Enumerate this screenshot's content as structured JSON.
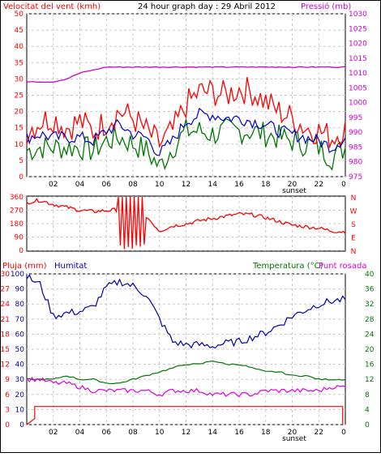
{
  "colors": {
    "wind": "#ff0000",
    "gust": "#ff0000",
    "wind_avg": "#0000cc",
    "wind_green": "#007700",
    "pressure": "#cc00cc",
    "direction": "#ff0000",
    "rain": "#ff0000",
    "humidity": "#0000aa",
    "temperature": "#007700",
    "dewpoint": "#dd00dd",
    "grid": "#c8c8c8",
    "frame": "#000000"
  },
  "chart_data": [
    {
      "type": "line",
      "title": "24 hour graph day : 29 Abril 2012",
      "ylabel_left": "Velocitat del vent (kmh)",
      "ylabel_right": "Pressió (mb)",
      "yticks_left": [
        "0",
        "5",
        "10",
        "15",
        "20",
        "25",
        "30",
        "35",
        "40",
        "45",
        "50"
      ],
      "yticks_right": [
        "975",
        "980",
        "985",
        "990",
        "995",
        "1000",
        "1005",
        "1010",
        "1015",
        "1020",
        "1025",
        "1030"
      ],
      "ylim_left": [
        0,
        50
      ],
      "ylim_right": [
        975,
        1030
      ],
      "xticks": [
        "02",
        "04",
        "06",
        "08",
        "10",
        "12",
        "14",
        "16",
        "18",
        "20",
        "22",
        "0"
      ],
      "xlabel_marker": "sunset",
      "x_hours": [
        0,
        1,
        2,
        3,
        4,
        5,
        6,
        7,
        8,
        9,
        10,
        11,
        12,
        13,
        14,
        15,
        16,
        17,
        18,
        19,
        20,
        21,
        22,
        23,
        24
      ],
      "series": [
        {
          "name": "Velocitat del vent (kmh)",
          "role": "gust",
          "values": [
            14,
            17,
            18,
            15,
            17,
            14,
            17,
            20,
            18,
            14,
            10,
            14,
            22,
            26,
            26,
            25,
            27,
            26,
            23,
            20,
            18,
            15,
            14,
            12,
            15
          ]
        },
        {
          "name": "",
          "role": "average",
          "values": [
            12,
            13,
            12,
            12,
            12,
            11,
            14,
            16,
            13,
            12,
            7,
            11,
            17,
            19,
            19,
            18,
            18,
            17,
            16,
            14,
            13,
            12,
            11,
            9,
            12
          ]
        },
        {
          "name": "",
          "role": "low",
          "values": [
            8,
            9,
            9,
            9,
            9,
            8,
            11,
            12,
            10,
            8,
            3,
            9,
            14,
            14,
            13,
            14,
            14,
            14,
            13,
            12,
            11,
            10,
            9,
            6,
            9
          ]
        },
        {
          "name": "Pressió (mb)",
          "role": "pressure",
          "values": [
            1007,
            1007,
            1007,
            1008,
            1010,
            1011,
            1012,
            1012,
            1012,
            1012,
            1012,
            1012,
            1012,
            1012,
            1012,
            1012,
            1012,
            1012,
            1012,
            1012,
            1012,
            1012,
            1012,
            1012,
            1012
          ]
        }
      ]
    },
    {
      "type": "line",
      "ylabel": "",
      "ylabel_right": [
        "N",
        "W",
        "S",
        "E",
        "N"
      ],
      "yticks_left": [
        "0",
        "90",
        "180",
        "270",
        "360"
      ],
      "ylim": [
        0,
        360
      ],
      "xticks": [
        "02",
        "04",
        "06",
        "08",
        "10",
        "12",
        "14",
        "16",
        "18",
        "20",
        "22",
        "0"
      ],
      "series": [
        {
          "name": "",
          "values": [
            322,
            338,
            310,
            290,
            270,
            262,
            268,
            275,
            280,
            230,
            130,
            165,
            178,
            200,
            215,
            230,
            245,
            240,
            220,
            195,
            170,
            160,
            150,
            130,
            125
          ]
        }
      ]
    },
    {
      "type": "line",
      "ylabel_left": [
        "Pluja (mm)",
        "Humitat"
      ],
      "ylabel_right": [
        "Temperatura (°C)",
        "Punt rosada"
      ],
      "yticks_rain": [
        "0",
        "3",
        "6",
        "9",
        "12",
        "15",
        "18",
        "21",
        "24",
        "27",
        "30"
      ],
      "yticks_humidity": [
        "0",
        "10",
        "20",
        "30",
        "40",
        "50",
        "60",
        "70",
        "80",
        "90",
        "100"
      ],
      "yticks_right": [
        "0",
        "4",
        "8",
        "12",
        "16",
        "20",
        "24",
        "28",
        "32",
        "36",
        "40"
      ],
      "xticks": [
        "02",
        "04",
        "06",
        "08",
        "10",
        "12",
        "14",
        "16",
        "18",
        "20",
        "22",
        "0"
      ],
      "xlabel_marker": "sunset",
      "series": [
        {
          "name": "Humitat",
          "axis": "humidity",
          "values": [
            98,
            93,
            72,
            74,
            75,
            78,
            91,
            95,
            92,
            86,
            70,
            55,
            53,
            53,
            52,
            54,
            55,
            58,
            61,
            66,
            72,
            76,
            80,
            82,
            83
          ]
        },
        {
          "name": "Temperatura (°C)",
          "axis": "temperature",
          "values": [
            12,
            12,
            12,
            13,
            12,
            12,
            11,
            11,
            12,
            13,
            14,
            15,
            16,
            16,
            17,
            16,
            16,
            15,
            14,
            14,
            13,
            13,
            12,
            12,
            12
          ]
        },
        {
          "name": "Punt rosada",
          "axis": "temperature",
          "values": [
            12,
            12,
            11,
            11,
            10,
            9,
            9,
            9,
            9,
            9,
            8,
            9,
            9,
            9,
            8,
            8,
            8,
            8,
            9,
            9,
            9,
            9,
            9,
            10,
            10
          ]
        },
        {
          "name": "Pluja (mm)",
          "axis": "rain",
          "values": [
            0,
            4,
            4,
            4,
            4,
            4,
            4,
            4,
            4,
            4,
            4,
            4,
            4,
            4,
            4,
            4,
            4,
            4,
            4,
            4,
            4,
            4,
            4,
            4,
            0
          ]
        }
      ]
    }
  ]
}
